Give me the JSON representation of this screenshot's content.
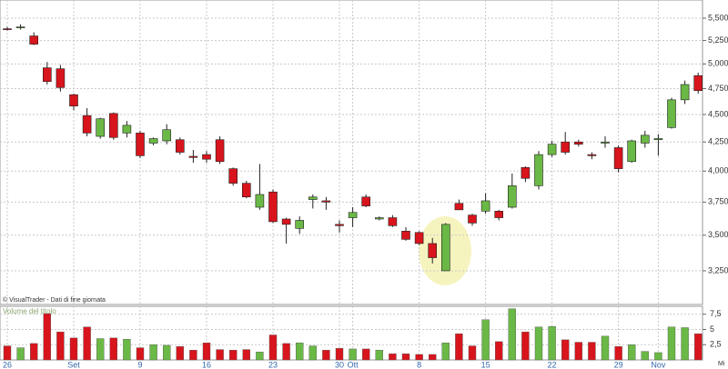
{
  "chart_data": {
    "type": "candlestick",
    "log_scale": true,
    "grid": true,
    "up_color": "#6ab845",
    "down_color": "#d8141c",
    "source_note": "© VisualTrader - Dati di fine giornata",
    "categories": [
      "26",
      null,
      null,
      null,
      null,
      "Set",
      null,
      null,
      null,
      null,
      "9",
      null,
      null,
      null,
      null,
      "16",
      null,
      null,
      null,
      null,
      "23",
      null,
      null,
      null,
      null,
      "30",
      "Ott",
      null,
      null,
      null,
      null,
      "8",
      null,
      null,
      null,
      null,
      "15",
      null,
      null,
      null,
      null,
      "22",
      null,
      null,
      null,
      null,
      "29",
      null,
      null,
      "Nov",
      null,
      null,
      null
    ],
    "open": [
      5380,
      5390,
      5300,
      4960,
      4950,
      4690,
      4490,
      4300,
      4510,
      4330,
      4330,
      4240,
      4260,
      4270,
      4125,
      4140,
      4270,
      4020,
      3900,
      3710,
      3830,
      3620,
      3550,
      3770,
      3760,
      3580,
      3630,
      3790,
      3620,
      3630,
      3530,
      3520,
      3440,
      3250,
      3740,
      3650,
      3680,
      3680,
      3710,
      4030,
      3880,
      4140,
      4250,
      4250,
      4140,
      4240,
      4200,
      4080,
      4240,
      4270,
      4380,
      4640,
      4880
    ],
    "high": [
      5400,
      5430,
      5340,
      5020,
      4990,
      4700,
      4560,
      4470,
      4520,
      4440,
      4350,
      4290,
      4410,
      4290,
      4180,
      4170,
      4300,
      4030,
      3920,
      4060,
      3850,
      3630,
      3640,
      3810,
      3790,
      3610,
      3710,
      3810,
      3640,
      3650,
      3560,
      3530,
      3480,
      3590,
      3770,
      3660,
      3820,
      3690,
      3980,
      4040,
      4170,
      4260,
      4340,
      4270,
      4160,
      4300,
      4220,
      4270,
      4350,
      4320,
      4660,
      4830,
      4910
    ],
    "low": [
      5360,
      5370,
      5200,
      4790,
      4720,
      4540,
      4300,
      4280,
      4270,
      4290,
      4110,
      4220,
      4230,
      4140,
      4070,
      4070,
      4060,
      3880,
      3780,
      3690,
      3590,
      3440,
      3510,
      3700,
      3690,
      3520,
      3560,
      3710,
      3610,
      3560,
      3460,
      3430,
      3300,
      3250,
      3690,
      3570,
      3660,
      3610,
      3700,
      3910,
      3850,
      4120,
      4140,
      4210,
      4100,
      4200,
      3990,
      4070,
      4200,
      4130,
      4370,
      4600,
      4700
    ],
    "close": [
      5370,
      5400,
      5210,
      4820,
      4760,
      4580,
      4330,
      4460,
      4290,
      4400,
      4130,
      4280,
      4360,
      4160,
      4115,
      4100,
      4080,
      3900,
      3790,
      3810,
      3600,
      3580,
      3610,
      3790,
      3750,
      3570,
      3670,
      3720,
      3630,
      3570,
      3470,
      3440,
      3340,
      3580,
      3690,
      3590,
      3760,
      3630,
      3880,
      3940,
      4140,
      4230,
      4160,
      4230,
      4130,
      4250,
      4020,
      4260,
      4310,
      4280,
      4640,
      4790,
      4730
    ],
    "ylim": [
      3030,
      5712
    ],
    "yticks": [
      {
        "value": 3250,
        "label": "3,250"
      },
      {
        "value": 3500,
        "label": "3,500"
      },
      {
        "value": 3750,
        "label": "3,750"
      },
      {
        "value": 4000,
        "label": "4,000"
      },
      {
        "value": 4250,
        "label": "4,250"
      },
      {
        "value": 4500,
        "label": "4,500"
      },
      {
        "value": 4750,
        "label": "4,750"
      },
      {
        "value": 5000,
        "label": "5,000"
      },
      {
        "value": 5250,
        "label": "5,250"
      },
      {
        "value": 5500,
        "label": "5,500"
      }
    ],
    "volume": {
      "title": "Volume del titolo",
      "y_label": "Mi",
      "values": [
        2.3,
        2.0,
        2.7,
        7.6,
        4.6,
        3.6,
        5.4,
        3.5,
        3.6,
        3.4,
        2.0,
        2.5,
        2.4,
        2.2,
        1.6,
        2.8,
        1.7,
        1.6,
        1.7,
        1.3,
        4.1,
        2.7,
        2.8,
        2.3,
        1.6,
        1.9,
        1.8,
        1.8,
        1.6,
        1.0,
        1.0,
        0.9,
        0.9,
        2.8,
        4.3,
        2.3,
        6.6,
        3.0,
        8.4,
        4.6,
        5.4,
        5.5,
        3.3,
        2.9,
        2.9,
        3.9,
        2.2,
        2.5,
        1.4,
        1.2,
        5.4,
        5.3,
        4.3
      ],
      "ylim": [
        0,
        8.8
      ],
      "yticks": [
        {
          "value": 2.5,
          "label": "2,5"
        },
        5,
        {
          "value": 7.5,
          "label": "7,5"
        }
      ]
    }
  }
}
